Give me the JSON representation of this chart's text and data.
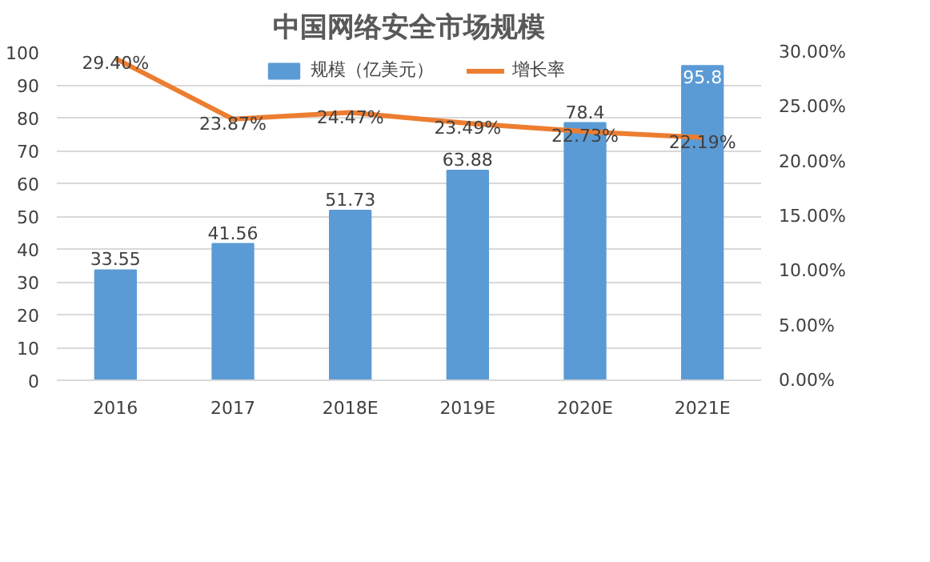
{
  "chart_data": {
    "type": "bar",
    "title": "中国网络安全市场规模",
    "categories": [
      "2016",
      "2017",
      "2018E",
      "2019E",
      "2020E",
      "2021E"
    ],
    "series": [
      {
        "name": "规模（亿美元）",
        "color": "#5b9bd5",
        "values": [
          33.55,
          41.56,
          51.73,
          63.88,
          78.4,
          95.8
        ],
        "value_labels": [
          "33.55",
          "41.56",
          "51.73",
          "63.88",
          "78.4",
          "95.8"
        ]
      },
      {
        "name": "增长率",
        "type": "line",
        "axis": "y2",
        "color": "#ed7d31",
        "values": [
          29.4,
          23.87,
          24.47,
          23.49,
          22.73,
          22.19
        ],
        "value_labels": [
          "29.40%",
          "23.87%",
          "24.47%",
          "23.49%",
          "22.73%",
          "22.19%"
        ]
      }
    ],
    "ylim": [
      0,
      100
    ],
    "yticks": [
      0,
      10,
      20,
      30,
      40,
      50,
      60,
      70,
      80,
      90,
      100
    ],
    "y2lim": [
      0,
      30
    ],
    "y2ticks": [
      {
        "value": 0,
        "label": "0.00%"
      },
      {
        "value": 5,
        "label": "5.00%"
      },
      {
        "value": 10,
        "label": "10.00%"
      },
      {
        "value": 15,
        "label": "15.00%"
      },
      {
        "value": 20,
        "label": "20.00%"
      },
      {
        "value": 25,
        "label": "25.00%"
      },
      {
        "value": 30,
        "label": "30.00%"
      }
    ],
    "grid": "y",
    "legend": "top"
  }
}
